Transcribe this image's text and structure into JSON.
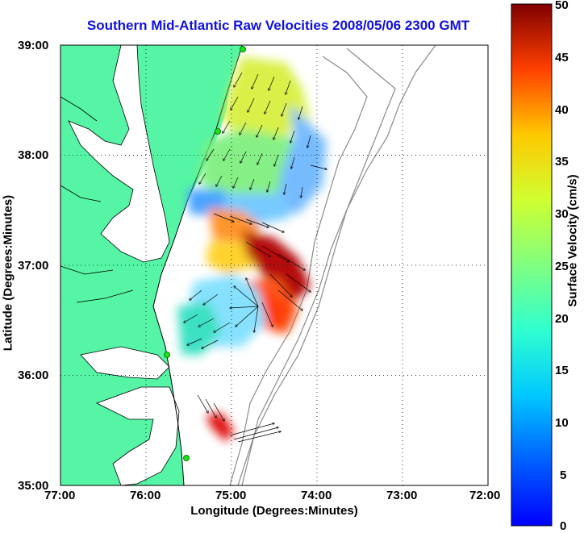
{
  "title": "Southern Mid-Atlantic Raw Velocities 2008/05/06 2300 GMT",
  "x_axis": {
    "label": "Longitude (Degrees:Minutes)",
    "ticks": [
      "77:00",
      "76:00",
      "75:00",
      "74:00",
      "73:00",
      "72:00"
    ]
  },
  "y_axis": {
    "label": "Latitude (Degrees:Minutes)",
    "ticks": [
      "39:00",
      "38:00",
      "37:00",
      "36:00",
      "35:00"
    ]
  },
  "colorbar": {
    "label": "Surface Velocity (cm/s)",
    "ticks": [
      "50",
      "45",
      "40",
      "35",
      "30",
      "25",
      "20",
      "15",
      "10",
      "5",
      "0"
    ],
    "range": [
      0,
      50
    ],
    "colormap": "jet"
  },
  "colors": {
    "title": "#1010e0",
    "land": "#55f5a5",
    "bathymetry": "#8a8a8a",
    "stations": "#22dd22"
  },
  "map": {
    "lon_range": [
      "77:00",
      "72:00"
    ],
    "lat_range": [
      "35:00",
      "39:00"
    ],
    "grid": "dotted",
    "features": [
      "land-mask",
      "bathymetry-contours",
      "velocity-color-field",
      "current-vectors",
      "radar-stations"
    ]
  }
}
